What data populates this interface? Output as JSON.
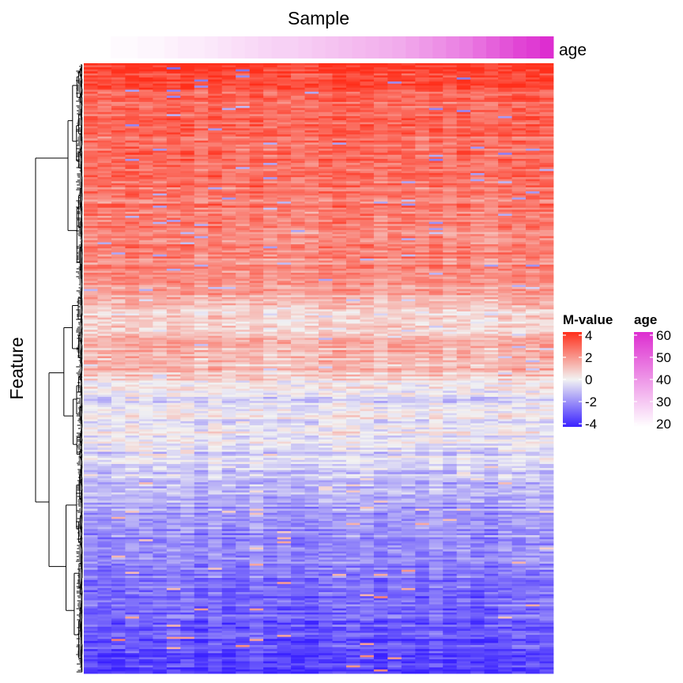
{
  "chart_data": {
    "type": "heatmap",
    "column_title": "Sample",
    "row_title": "Feature",
    "column_annotation": {
      "name": "age",
      "values": [
        18,
        19,
        19,
        20,
        20,
        21,
        22,
        22,
        23,
        24,
        25,
        26,
        27,
        28,
        28,
        29,
        30,
        31,
        32,
        33,
        34,
        35,
        36,
        38,
        40,
        42,
        44,
        46,
        49,
        52,
        55,
        58,
        60,
        63
      ],
      "color_low": "#ffffff",
      "color_high": "#dd2ed0"
    },
    "n_columns": 34,
    "n_rows": 300,
    "row_dendrogram": true,
    "row_profile": {
      "description_position": [
        0.0,
        0.05,
        0.15,
        0.27,
        0.36,
        0.42,
        0.46,
        0.5,
        0.55,
        0.6,
        0.66,
        0.75,
        0.85,
        0.93,
        1.0
      ],
      "mean_m_value": [
        4.2,
        3.3,
        3.0,
        2.6,
        2.2,
        0.5,
        1.6,
        1.3,
        -0.5,
        0.0,
        -0.9,
        -1.9,
        -2.7,
        -3.2,
        -4.0
      ]
    },
    "legends": [
      {
        "title": "M-value",
        "ticks": [
          "4",
          "2",
          "0",
          "-2",
          "-4"
        ],
        "tick_values": [
          4,
          2,
          0,
          -2,
          -4
        ],
        "colors": {
          "low": "#3a22ff",
          "mid": "#f2f2f2",
          "high": "#ff2f1b"
        }
      },
      {
        "title": "age",
        "ticks": [
          "60",
          "50",
          "40",
          "30",
          "20"
        ],
        "tick_values": [
          60,
          50,
          40,
          30,
          20
        ],
        "colors": {
          "low": "#ffffff",
          "high": "#dd2ed0"
        }
      }
    ]
  }
}
